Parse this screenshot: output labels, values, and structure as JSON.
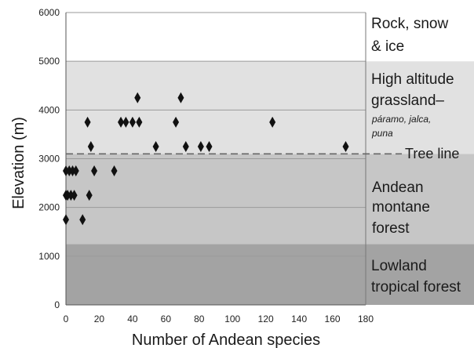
{
  "chart_data": {
    "type": "scatter",
    "title": "",
    "xlabel": "Number of Andean species",
    "ylabel": "Elevation (m)",
    "xlim": [
      0,
      180
    ],
    "ylim": [
      0,
      6000
    ],
    "x_ticks": [
      "0",
      "20",
      "40",
      "60",
      "80",
      "100",
      "120",
      "140",
      "160",
      "180"
    ],
    "y_ticks": [
      "0",
      "1000",
      "2000",
      "3000",
      "4000",
      "5000",
      "6000"
    ],
    "marker": "diamond",
    "grid": "horizontal",
    "points": [
      {
        "x": 0,
        "y": 1750
      },
      {
        "x": 0,
        "y": 2250
      },
      {
        "x": 0,
        "y": 2750
      },
      {
        "x": 1,
        "y": 2250
      },
      {
        "x": 2,
        "y": 2750
      },
      {
        "x": 3,
        "y": 2250
      },
      {
        "x": 4,
        "y": 2750
      },
      {
        "x": 5,
        "y": 2250
      },
      {
        "x": 6,
        "y": 2750
      },
      {
        "x": 10,
        "y": 1750
      },
      {
        "x": 13,
        "y": 3750
      },
      {
        "x": 14,
        "y": 2250
      },
      {
        "x": 15,
        "y": 3250
      },
      {
        "x": 17,
        "y": 2750
      },
      {
        "x": 29,
        "y": 2750
      },
      {
        "x": 33,
        "y": 3750
      },
      {
        "x": 36,
        "y": 3750
      },
      {
        "x": 40,
        "y": 3750
      },
      {
        "x": 43,
        "y": 4250
      },
      {
        "x": 44,
        "y": 3750
      },
      {
        "x": 54,
        "y": 3250
      },
      {
        "x": 66,
        "y": 3750
      },
      {
        "x": 69,
        "y": 4250
      },
      {
        "x": 72,
        "y": 3250
      },
      {
        "x": 81,
        "y": 3250
      },
      {
        "x": 86,
        "y": 3250
      },
      {
        "x": 124,
        "y": 3750
      },
      {
        "x": 168,
        "y": 3250
      }
    ],
    "zones": [
      {
        "name": "Lowland tropical forest",
        "from": 0,
        "to": 1250,
        "color": "#a3a3a3"
      },
      {
        "name": "Andean montane forest",
        "from": 1250,
        "to": 3100,
        "color": "#c6c6c6"
      },
      {
        "name": "High altitude grassland–páramo, jalca, puna",
        "from": 3100,
        "to": 5000,
        "color": "#e1e1e1"
      },
      {
        "name": "Rock, snow & ice",
        "from": 5000,
        "to": 6000,
        "color": "#ffffff"
      }
    ],
    "tree_line": {
      "y": 3100,
      "label": "Tree line"
    }
  },
  "labels": {
    "rock1": "Rock, snow",
    "rock2": "& ice",
    "high1": "High altitude",
    "high2": "grassland–",
    "high3": "páramo, jalca,",
    "high4": "puna",
    "tree": "Tree line",
    "montane1": "Andean",
    "montane2": "montane",
    "montane3": "forest",
    "lowland1": "Lowland",
    "lowland2": "tropical forest"
  }
}
